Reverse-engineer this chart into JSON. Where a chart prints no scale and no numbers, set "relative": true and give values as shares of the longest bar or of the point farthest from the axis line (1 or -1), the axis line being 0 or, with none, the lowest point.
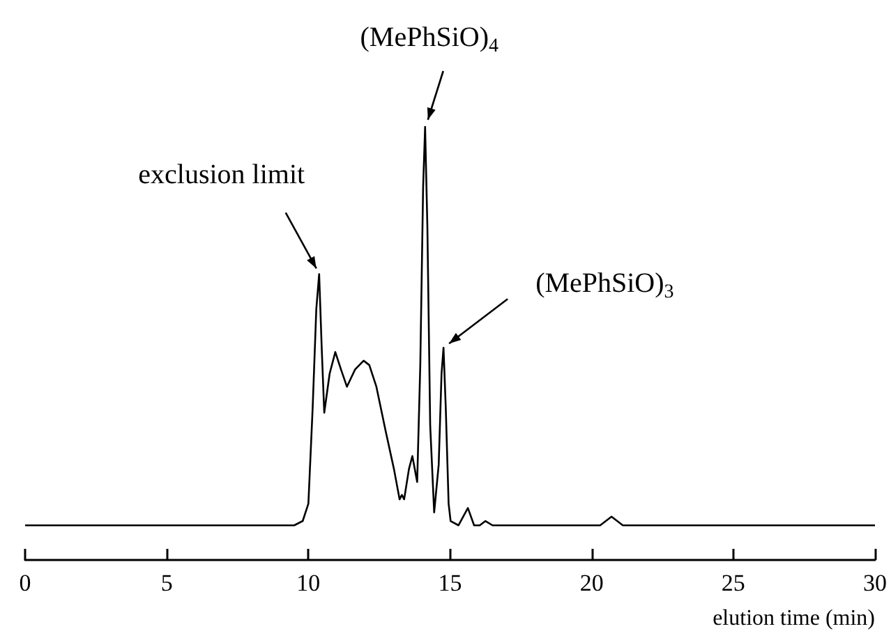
{
  "chart_data": {
    "type": "line",
    "relative": true,
    "color": "#000000",
    "xlabel": "elution time (min)",
    "xlim": [
      0,
      30
    ],
    "xticks": [
      0,
      5,
      10,
      15,
      20,
      25,
      30
    ],
    "x": [
      0,
      5,
      9.5,
      9.8,
      10.0,
      10.15,
      10.28,
      10.38,
      10.47,
      10.56,
      10.75,
      10.95,
      11.15,
      11.36,
      11.65,
      11.95,
      12.15,
      12.4,
      12.72,
      13.02,
      13.22,
      13.3,
      13.38,
      13.55,
      13.67,
      13.84,
      13.95,
      14.05,
      14.12,
      14.2,
      14.3,
      14.44,
      14.6,
      14.7,
      14.77,
      14.85,
      14.95,
      15.02,
      15.3,
      15.63,
      15.85,
      16.05,
      16.25,
      16.5,
      18.5,
      20.3,
      20.7,
      21.1,
      25,
      30
    ],
    "values": [
      0.08,
      0.08,
      0.08,
      0.09,
      0.13,
      0.35,
      0.58,
      0.66,
      0.49,
      0.34,
      0.43,
      0.48,
      0.44,
      0.4,
      0.44,
      0.46,
      0.45,
      0.4,
      0.3,
      0.21,
      0.14,
      0.15,
      0.14,
      0.21,
      0.24,
      0.18,
      0.45,
      0.86,
      1,
      0.77,
      0.31,
      0.11,
      0.22,
      0.43,
      0.49,
      0.35,
      0.13,
      0.09,
      0.08,
      0.12,
      0.08,
      0.08,
      0.09,
      0.08,
      0.08,
      0.08,
      0.1,
      0.08,
      0.08,
      0.08
    ],
    "annotations": [
      {
        "text": "exclusion limit",
        "x": 10.38,
        "y": 0.66
      },
      {
        "text": "(MePhSiO)$_{4}$",
        "x": 14.12,
        "y": 1
      },
      {
        "text": "(MePhSiO)$_{3}$",
        "x": 14.77,
        "y": 0.49
      }
    ]
  }
}
